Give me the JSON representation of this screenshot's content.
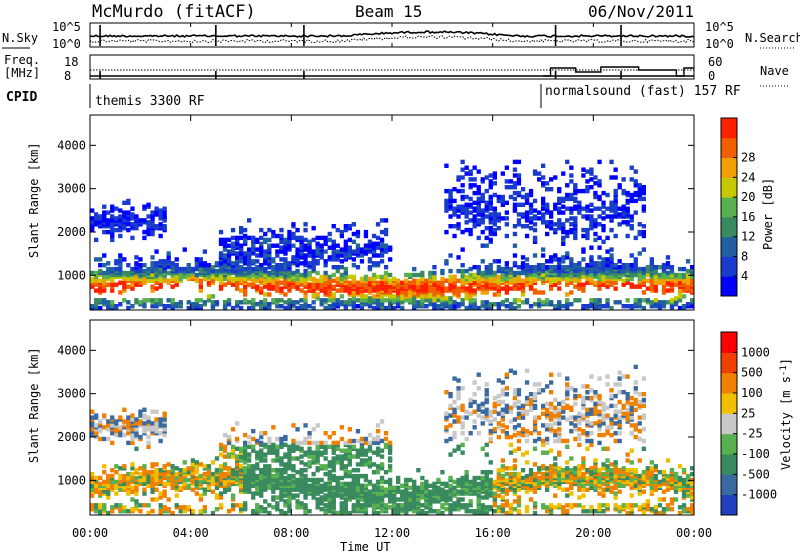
{
  "header": {
    "station": "McMurdo (fitACF)",
    "beam": "Beam 15",
    "date": "06/Nov/2011"
  },
  "noise_panel": {
    "left_label": "N.Sky",
    "right_label": "N.Search",
    "left_ticks": [
      "10^5",
      "10^0"
    ],
    "right_ticks": [
      "10^5",
      "10^0"
    ]
  },
  "freq_panel": {
    "left_label_1": "Freq.",
    "left_label_2": "[MHz]",
    "right_label": "Nave",
    "left_ticks": [
      "18",
      "8"
    ],
    "right_ticks": [
      "60",
      "0"
    ]
  },
  "cpid": {
    "label": "CPID",
    "modes": [
      {
        "text": "themis 3300 RF",
        "start_hour": 0
      },
      {
        "text": "normalsound (fast) 157 RF",
        "start_hour": 18
      }
    ]
  },
  "chart_data": [
    {
      "type": "heatmap",
      "name": "power",
      "ylabel": "Slant Range [km]",
      "yticks": [
        "1000",
        "2000",
        "3000",
        "4000"
      ],
      "ylim": [
        200,
        4700
      ],
      "xlim": [
        0,
        24
      ],
      "colorbar_label": "Power [dB]",
      "colorbar_ticks": [
        "4",
        "8",
        "12",
        "16",
        "20",
        "24",
        "28"
      ],
      "colors": [
        "#0000ff",
        "#1a3ccc",
        "#2060a0",
        "#3a8a60",
        "#58b050",
        "#c8c800",
        "#f0a000",
        "#f06000",
        "#ff2000"
      ]
    },
    {
      "type": "heatmap",
      "name": "velocity",
      "ylabel": "Slant Range [km]",
      "yticks": [
        "1000",
        "2000",
        "3000",
        "4000"
      ],
      "ylim": [
        200,
        4700
      ],
      "xlim": [
        0,
        24
      ],
      "colorbar_label": "Velocity [m s",
      "colorbar_label_sup": "-1",
      "colorbar_ticks": [
        "1000",
        "500",
        "100",
        "25",
        "-25",
        "-100",
        "-500",
        "-1000"
      ],
      "colors": [
        "#2040c0",
        "#3a6aa0",
        "#3a8a60",
        "#58b050",
        "#c8c8c8",
        "#f0c000",
        "#f08000",
        "#f04000",
        "#ff0000"
      ]
    }
  ],
  "xaxis": {
    "label": "Time UT",
    "ticks": [
      "00:00",
      "04:00",
      "08:00",
      "12:00",
      "16:00",
      "20:00",
      "00:00"
    ]
  }
}
